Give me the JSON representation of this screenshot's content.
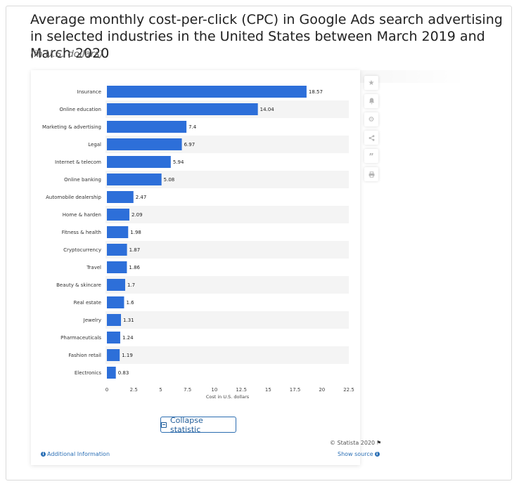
{
  "header": {
    "title": "Average monthly cost-per-click (CPC) in Google Ads search advertising in selected industries in the United States between March 2019 and March 2020",
    "subtitle": "(in U.S. dollars)"
  },
  "toolbar": {
    "icons": [
      "star-icon",
      "bell-icon",
      "gear-icon",
      "share-icon",
      "quote-icon",
      "print-icon"
    ]
  },
  "buttons": {
    "collapse_label": "Collapse statistic"
  },
  "footer": {
    "copyright": "© Statista 2020",
    "additional_info": "Additional Information",
    "show_source": "Show source"
  },
  "colors": {
    "bar": "#2d6fd9",
    "stripe": "#f4f4f4",
    "link": "#2a6fb5"
  },
  "chart_data": {
    "type": "bar",
    "orientation": "horizontal",
    "categories": [
      "Insurance",
      "Online education",
      "Marketing & advertising",
      "Legal",
      "Internet & telecom",
      "Online banking",
      "Automobile dealership",
      "Home & harden",
      "Fitness & health",
      "Cryptocurrency",
      "Travel",
      "Beauty & skincare",
      "Real estate",
      "Jewelry",
      "Pharmaceuticals",
      "Fashion retail",
      "Electronics"
    ],
    "values": [
      18.57,
      14.04,
      7.4,
      6.97,
      5.94,
      5.08,
      2.47,
      2.09,
      1.98,
      1.87,
      1.86,
      1.7,
      1.6,
      1.31,
      1.24,
      1.19,
      0.83
    ],
    "value_labels": [
      "18.57",
      "14.04",
      "7.4",
      "6.97",
      "5.94",
      "5.08",
      "2.47",
      "2.09",
      "1.98",
      "1.87",
      "1.86",
      "1.7",
      "1.6",
      "1.31",
      "1.24",
      "1.19",
      "0.83"
    ],
    "xlabel": "Cost in U.S. dollars",
    "xlim": [
      0,
      22.5
    ],
    "xticks": [
      0,
      2.5,
      5,
      7.5,
      10,
      12.5,
      15,
      17.5,
      20,
      22.5
    ],
    "xtick_labels": [
      "0",
      "2.5",
      "5",
      "7.5",
      "10",
      "12.5",
      "15",
      "17.5",
      "20",
      "22.5"
    ],
    "grid": false,
    "striped_rows": true
  }
}
